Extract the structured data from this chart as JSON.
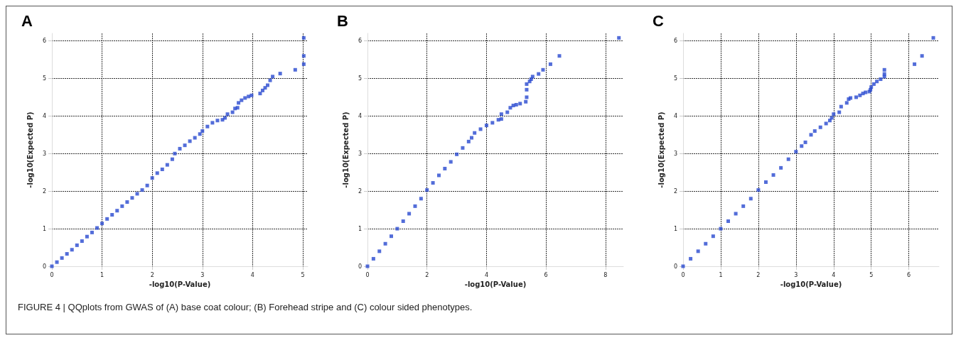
{
  "chart_data": [
    {
      "type": "scatter",
      "title": "A",
      "xlabel": "-log10(P-Value)",
      "ylabel": "-log10(Expected P)",
      "color": "#2848d0",
      "marker": "square",
      "grid": true,
      "xlim": [
        0,
        5.1
      ],
      "ylim": [
        0,
        6.2
      ],
      "xticks": [
        0,
        1,
        2,
        3,
        4,
        5
      ],
      "yticks": [
        0,
        1,
        2,
        3,
        4,
        5,
        6
      ],
      "x": [
        0,
        0.1,
        0.2,
        0.3,
        0.4,
        0.5,
        0.6,
        0.7,
        0.8,
        0.9,
        1.0,
        1.1,
        1.2,
        1.3,
        1.4,
        1.5,
        1.6,
        1.7,
        1.8,
        1.9,
        2.0,
        2.1,
        2.2,
        2.3,
        2.4,
        2.45,
        2.55,
        2.65,
        2.75,
        2.85,
        2.95,
        3.0,
        3.1,
        3.2,
        3.3,
        3.4,
        3.45,
        3.5,
        3.6,
        3.65,
        3.7,
        3.72,
        3.78,
        3.85,
        3.92,
        3.98,
        4.15,
        4.2,
        4.25,
        4.3,
        4.35,
        4.4,
        4.55,
        4.85,
        5.02,
        5.02,
        5.02
      ],
      "values": [
        0,
        0.11,
        0.22,
        0.33,
        0.44,
        0.56,
        0.67,
        0.79,
        0.9,
        1.02,
        1.14,
        1.26,
        1.37,
        1.48,
        1.6,
        1.71,
        1.82,
        1.93,
        2.03,
        2.15,
        2.35,
        2.48,
        2.58,
        2.7,
        2.85,
        3.0,
        3.13,
        3.22,
        3.33,
        3.42,
        3.52,
        3.6,
        3.72,
        3.82,
        3.88,
        3.9,
        3.95,
        4.05,
        4.1,
        4.2,
        4.22,
        4.35,
        4.42,
        4.48,
        4.52,
        4.55,
        4.6,
        4.68,
        4.75,
        4.82,
        4.95,
        5.05,
        5.13,
        5.23,
        5.38,
        5.6,
        6.08
      ],
      "annotations": [
        "FIGURE 4 | QQplots from GWAS of (A) base coat colour; (B) Forehead stripe and (C) colour sided phenotypes."
      ]
    },
    {
      "type": "scatter",
      "title": "B",
      "xlabel": "-log10(P-Value)",
      "ylabel": "-log10(Expected P)",
      "color": "#2848d0",
      "marker": "square",
      "grid": true,
      "xlim": [
        0,
        8.6
      ],
      "ylim": [
        0,
        6.2
      ],
      "xticks": [
        0,
        2,
        4,
        6,
        8
      ],
      "yticks": [
        0,
        1,
        2,
        3,
        4,
        5,
        6
      ],
      "x": [
        0,
        0.2,
        0.4,
        0.6,
        0.8,
        1.0,
        1.2,
        1.4,
        1.6,
        1.8,
        2.0,
        2.2,
        2.4,
        2.6,
        2.8,
        3.0,
        3.2,
        3.4,
        3.5,
        3.6,
        3.8,
        4.0,
        4.2,
        4.4,
        4.5,
        4.5,
        4.7,
        4.8,
        4.9,
        5.0,
        5.13,
        5.32,
        5.35,
        5.35,
        5.35,
        5.45,
        5.5,
        5.55,
        5.75,
        5.9,
        6.15,
        6.45,
        8.45
      ],
      "values": [
        0,
        0.2,
        0.4,
        0.6,
        0.8,
        1.0,
        1.2,
        1.4,
        1.6,
        1.8,
        2.03,
        2.22,
        2.42,
        2.6,
        2.78,
        2.98,
        3.15,
        3.32,
        3.42,
        3.55,
        3.65,
        3.75,
        3.82,
        3.9,
        3.92,
        4.05,
        4.1,
        4.22,
        4.28,
        4.3,
        4.33,
        4.38,
        4.5,
        4.7,
        4.85,
        4.92,
        4.98,
        5.05,
        5.12,
        5.23,
        5.38,
        5.6,
        6.08
      ]
    },
    {
      "type": "scatter",
      "title": "C",
      "xlabel": "-log10(P-Value)",
      "ylabel": "-log10(Expected P)",
      "color": "#2848d0",
      "marker": "square",
      "grid": true,
      "xlim": [
        0,
        6.8
      ],
      "ylim": [
        0,
        6.2
      ],
      "xticks": [
        0,
        1,
        2,
        3,
        4,
        5,
        6
      ],
      "yticks": [
        0,
        1,
        2,
        3,
        4,
        5,
        6
      ],
      "x": [
        0,
        0.2,
        0.4,
        0.6,
        0.8,
        1.0,
        1.2,
        1.4,
        1.6,
        1.8,
        2.0,
        2.2,
        2.4,
        2.6,
        2.8,
        3.0,
        3.15,
        3.25,
        3.4,
        3.5,
        3.65,
        3.8,
        3.9,
        3.95,
        4.0,
        4.15,
        4.2,
        4.35,
        4.4,
        4.45,
        4.6,
        4.7,
        4.78,
        4.85,
        4.95,
        4.98,
        5.0,
        5.07,
        5.15,
        5.25,
        5.35,
        5.35,
        5.35,
        6.15,
        6.35,
        6.65
      ],
      "values": [
        0,
        0.2,
        0.4,
        0.6,
        0.8,
        1.0,
        1.2,
        1.4,
        1.6,
        1.8,
        2.03,
        2.24,
        2.43,
        2.62,
        2.85,
        3.05,
        3.2,
        3.3,
        3.5,
        3.6,
        3.7,
        3.8,
        3.88,
        3.95,
        4.05,
        4.1,
        4.25,
        4.35,
        4.45,
        4.48,
        4.5,
        4.55,
        4.6,
        4.63,
        4.65,
        4.7,
        4.77,
        4.85,
        4.92,
        4.98,
        5.05,
        5.12,
        5.23,
        5.38,
        5.6,
        6.08
      ]
    }
  ]
}
